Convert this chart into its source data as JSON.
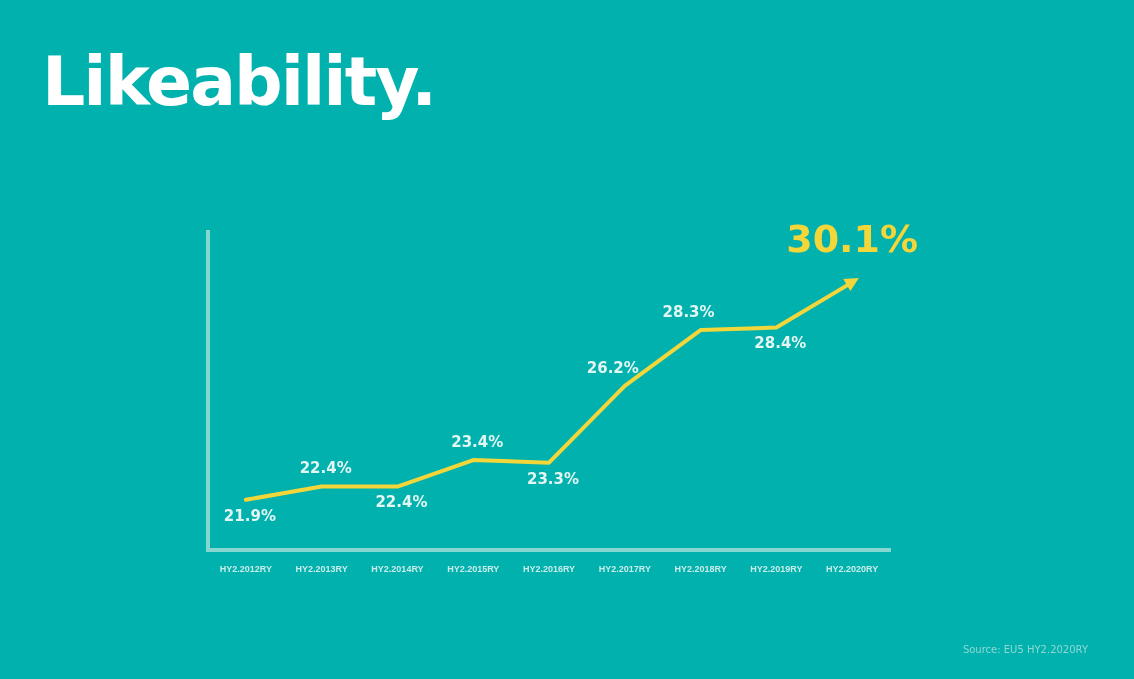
{
  "chart_data": {
    "type": "line",
    "title": "Likeability.",
    "categories": [
      "HY2.2012RY",
      "HY2.2013RY",
      "HY2.2014RY",
      "HY2.2015RY",
      "HY2.2016RY",
      "HY2.2017RY",
      "HY2.2018RY",
      "HY2.2019RY",
      "HY2.2020RY"
    ],
    "series": [
      {
        "color": "#f3d63a",
        "values": [
          21.9,
          22.4,
          22.4,
          23.4,
          23.3,
          26.2,
          28.3,
          28.4,
          30.1
        ],
        "value_labels": [
          "21.9%",
          "22.4%",
          "22.4%",
          "23.4%",
          "23.3%",
          "26.2%",
          "28.3%",
          "28.4%",
          "30.1%"
        ]
      }
    ],
    "annotations": [
      "Source: EU5 HY2.2020RY"
    ],
    "grid": false,
    "legend": false,
    "marker": "none",
    "line_style": "solid"
  }
}
